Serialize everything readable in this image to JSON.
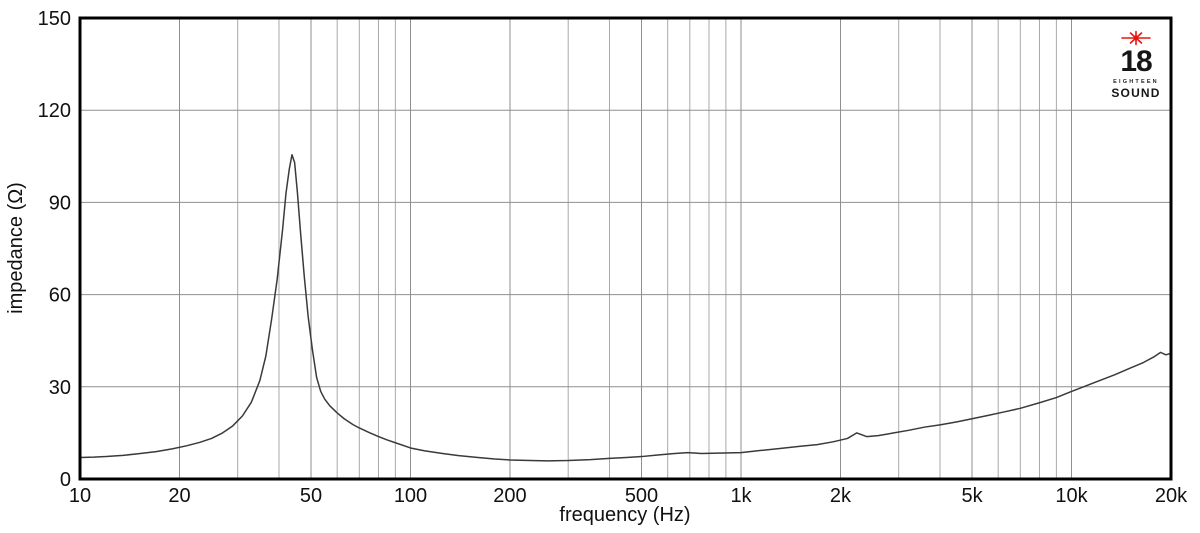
{
  "chart_data": {
    "type": "line",
    "title": "",
    "xlabel": "frequency (Hz)",
    "ylabel": "impedance (Ω)",
    "x_scale": "log",
    "xlim": [
      10,
      20000
    ],
    "ylim": [
      0,
      150
    ],
    "grid": true,
    "legend": "none",
    "y_ticks": [
      {
        "value": 0,
        "label": "0"
      },
      {
        "value": 30,
        "label": "30"
      },
      {
        "value": 60,
        "label": "60"
      },
      {
        "value": 90,
        "label": "90"
      },
      {
        "value": 120,
        "label": "120"
      },
      {
        "value": 150,
        "label": "150"
      }
    ],
    "y_gridlines": [
      30,
      60,
      90,
      120
    ],
    "x_ticks": [
      {
        "value": 10,
        "label": "10"
      },
      {
        "value": 20,
        "label": "20"
      },
      {
        "value": 50,
        "label": "50"
      },
      {
        "value": 100,
        "label": "100"
      },
      {
        "value": 200,
        "label": "200"
      },
      {
        "value": 500,
        "label": "500"
      },
      {
        "value": 1000,
        "label": "1k"
      },
      {
        "value": 2000,
        "label": "2k"
      },
      {
        "value": 5000,
        "label": "5k"
      },
      {
        "value": 10000,
        "label": "10k"
      },
      {
        "value": 20000,
        "label": "20k"
      }
    ],
    "x_gridlines": [
      20,
      30,
      40,
      50,
      60,
      70,
      80,
      90,
      100,
      200,
      300,
      400,
      500,
      600,
      700,
      800,
      900,
      1000,
      2000,
      3000,
      4000,
      5000,
      6000,
      7000,
      8000,
      9000,
      10000
    ],
    "resonance_peak": {
      "frequency_hz": 44,
      "impedance_ohm": 105.5
    },
    "series": [
      {
        "name": "impedance",
        "color": "#3a3a3a",
        "points": [
          [
            10,
            7.0
          ],
          [
            11,
            7.1
          ],
          [
            12,
            7.3
          ],
          [
            13.5,
            7.7
          ],
          [
            15,
            8.2
          ],
          [
            17,
            8.9
          ],
          [
            19,
            9.8
          ],
          [
            21,
            10.8
          ],
          [
            23,
            11.9
          ],
          [
            25,
            13.2
          ],
          [
            27,
            15.0
          ],
          [
            29,
            17.3
          ],
          [
            31,
            20.5
          ],
          [
            33,
            25.0
          ],
          [
            35,
            32.0
          ],
          [
            36.5,
            40.0
          ],
          [
            38,
            52.0
          ],
          [
            39.5,
            65.0
          ],
          [
            41,
            81.0
          ],
          [
            42,
            93.0
          ],
          [
            43,
            101.0
          ],
          [
            43.8,
            105.5
          ],
          [
            44.6,
            103.0
          ],
          [
            45.5,
            93.0
          ],
          [
            46.5,
            80.0
          ],
          [
            47.7,
            66.0
          ],
          [
            49,
            53.0
          ],
          [
            50.5,
            42.0
          ],
          [
            52,
            33.0
          ],
          [
            53.5,
            28.5
          ],
          [
            55,
            26.0
          ],
          [
            57,
            23.8
          ],
          [
            60,
            21.5
          ],
          [
            63,
            19.6
          ],
          [
            67,
            17.7
          ],
          [
            70,
            16.6
          ],
          [
            75,
            15.1
          ],
          [
            80,
            13.8
          ],
          [
            85,
            12.7
          ],
          [
            90,
            11.8
          ],
          [
            100,
            10.1
          ],
          [
            110,
            9.2
          ],
          [
            125,
            8.3
          ],
          [
            140,
            7.6
          ],
          [
            160,
            7.0
          ],
          [
            180,
            6.5
          ],
          [
            200,
            6.2
          ],
          [
            230,
            6.0
          ],
          [
            260,
            5.9
          ],
          [
            300,
            6.0
          ],
          [
            350,
            6.3
          ],
          [
            400,
            6.7
          ],
          [
            450,
            7.0
          ],
          [
            500,
            7.3
          ],
          [
            560,
            7.8
          ],
          [
            630,
            8.3
          ],
          [
            690,
            8.6
          ],
          [
            760,
            8.3
          ],
          [
            850,
            8.4
          ],
          [
            1000,
            8.6
          ],
          [
            1150,
            9.3
          ],
          [
            1300,
            9.9
          ],
          [
            1500,
            10.6
          ],
          [
            1700,
            11.2
          ],
          [
            1900,
            12.1
          ],
          [
            2100,
            13.2
          ],
          [
            2240,
            15.0
          ],
          [
            2400,
            13.8
          ],
          [
            2600,
            14.1
          ],
          [
            2900,
            15.0
          ],
          [
            3200,
            15.8
          ],
          [
            3600,
            16.9
          ],
          [
            4000,
            17.6
          ],
          [
            4500,
            18.6
          ],
          [
            5000,
            19.6
          ],
          [
            5600,
            20.7
          ],
          [
            6300,
            21.9
          ],
          [
            7000,
            23.0
          ],
          [
            8000,
            24.8
          ],
          [
            9000,
            26.5
          ],
          [
            10000,
            28.5
          ],
          [
            11000,
            30.2
          ],
          [
            12000,
            31.8
          ],
          [
            13500,
            33.9
          ],
          [
            15000,
            36.0
          ],
          [
            16500,
            37.9
          ],
          [
            17800,
            39.8
          ],
          [
            18600,
            41.2
          ],
          [
            19300,
            40.4
          ],
          [
            20000,
            40.9
          ]
        ]
      }
    ]
  },
  "colors": {
    "background": "#ffffff",
    "plot_border": "#000000",
    "gridline": "#a9a9a9",
    "gridline_major": "#8f8f8f",
    "curve": "#3a3a3a",
    "text": "#111111",
    "logo_star": "#e8150f",
    "logo_text": "#161616"
  },
  "logo": {
    "number": "18",
    "sub": "EIGHTEEN",
    "brand": "SOUND"
  }
}
